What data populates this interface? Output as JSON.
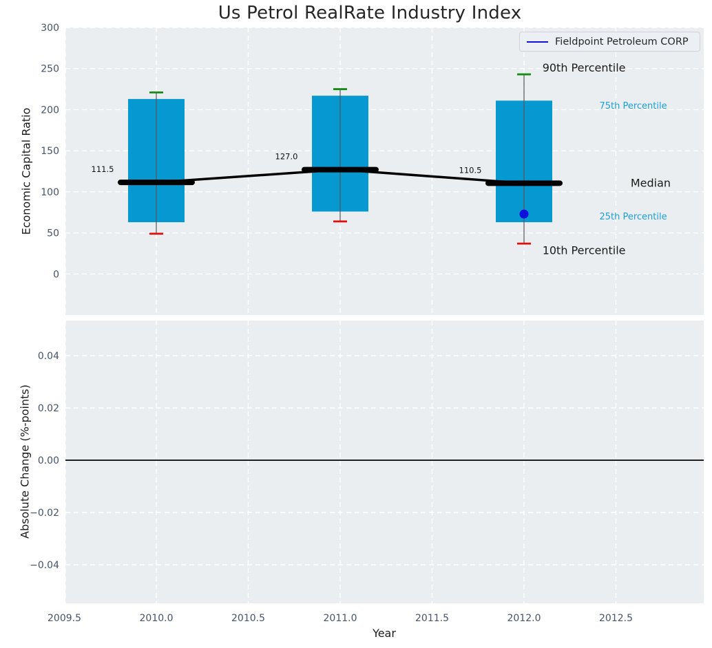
{
  "title": "Us Petrol RealRate Industry Index",
  "legend": {
    "label": "Fieldpoint Petroleum CORP"
  },
  "axis_labels": {
    "top_y": "Economic Capital Ratio",
    "bottom_y": "Absolute Change (%-points)",
    "x": "Year"
  },
  "colors": {
    "plot_bg": "#eaeef0",
    "grid": "#ffffff",
    "bar": "#0699d1",
    "whisker": "#555555",
    "p90_cap": "#168c16",
    "p10_cap": "#e60c0c",
    "median": "#000000",
    "company": "#1010dd",
    "tick_label": "#46536b",
    "value_label": "#111111",
    "zero_line": "#000000",
    "percentile_label": "#1b9fd8",
    "annotation_text": "#1a1a1a"
  },
  "chart_data": {
    "type": "bar",
    "subtype": "percentile-box-bars with median line and company marker",
    "title": "Us Petrol RealRate Industry Index",
    "xlabel": "Year",
    "xlim": [
      2009.5,
      2012.98
    ],
    "xticks": [
      2009.5,
      2010.0,
      2010.5,
      2011.0,
      2011.5,
      2012.0,
      2012.5
    ],
    "xtick_labels": [
      "2009.5",
      "2010.0",
      "2010.5",
      "2011.0",
      "2011.5",
      "2012.0",
      "2012.5"
    ],
    "x": [
      2010,
      2011,
      2012
    ],
    "series": [
      {
        "name": "10th Percentile",
        "values": [
          49,
          64,
          37
        ]
      },
      {
        "name": "25th Percentile",
        "values": [
          63,
          76,
          63
        ]
      },
      {
        "name": "Median",
        "values": [
          111.5,
          127.0,
          110.5
        ]
      },
      {
        "name": "75th Percentile",
        "values": [
          213,
          217,
          211
        ]
      },
      {
        "name": "90th Percentile",
        "values": [
          221,
          225,
          243
        ]
      }
    ],
    "median_labels": [
      "111.5",
      "127.0",
      "110.5"
    ],
    "company_point": {
      "name": "Fieldpoint Petroleum CORP",
      "x": 2012,
      "y": 73
    },
    "top_axis": {
      "ylabel": "Economic Capital Ratio",
      "ylim": [
        -50,
        300
      ],
      "yticks": [
        300,
        250,
        200,
        150,
        100,
        50,
        0
      ],
      "ytick_labels": [
        "300",
        "250",
        "200",
        "150",
        "100",
        "50",
        "0"
      ]
    },
    "bottom_axis": {
      "ylabel": "Absolute Change (%-points)",
      "ylim": [
        -0.055,
        0.053
      ],
      "yticks": [
        0.04,
        0.02,
        0.0,
        -0.02,
        -0.04
      ],
      "ytick_labels": [
        "0.04",
        "0.02",
        "0.00",
        "−0.02",
        "−0.04"
      ],
      "zero_line": 0.0
    },
    "grid": "white dashed, on",
    "legend_position": "upper right",
    "annotations": [
      {
        "text": "90th Percentile",
        "x": 2012.1,
        "y": 250.0,
        "color": "annotation_text",
        "size": 16
      },
      {
        "text": "75th Percentile",
        "x": 2012.41,
        "y": 204.0,
        "color": "percentile_label",
        "size": 13
      },
      {
        "text": "Median",
        "x": 2012.58,
        "y": 110.0,
        "color": "annotation_text",
        "size": 16
      },
      {
        "text": "25th Percentile",
        "x": 2012.41,
        "y": 69.5,
        "color": "percentile_label",
        "size": 13
      },
      {
        "text": "10th Percentile",
        "x": 2012.1,
        "y": 28.0,
        "color": "annotation_text",
        "size": 16
      }
    ]
  }
}
